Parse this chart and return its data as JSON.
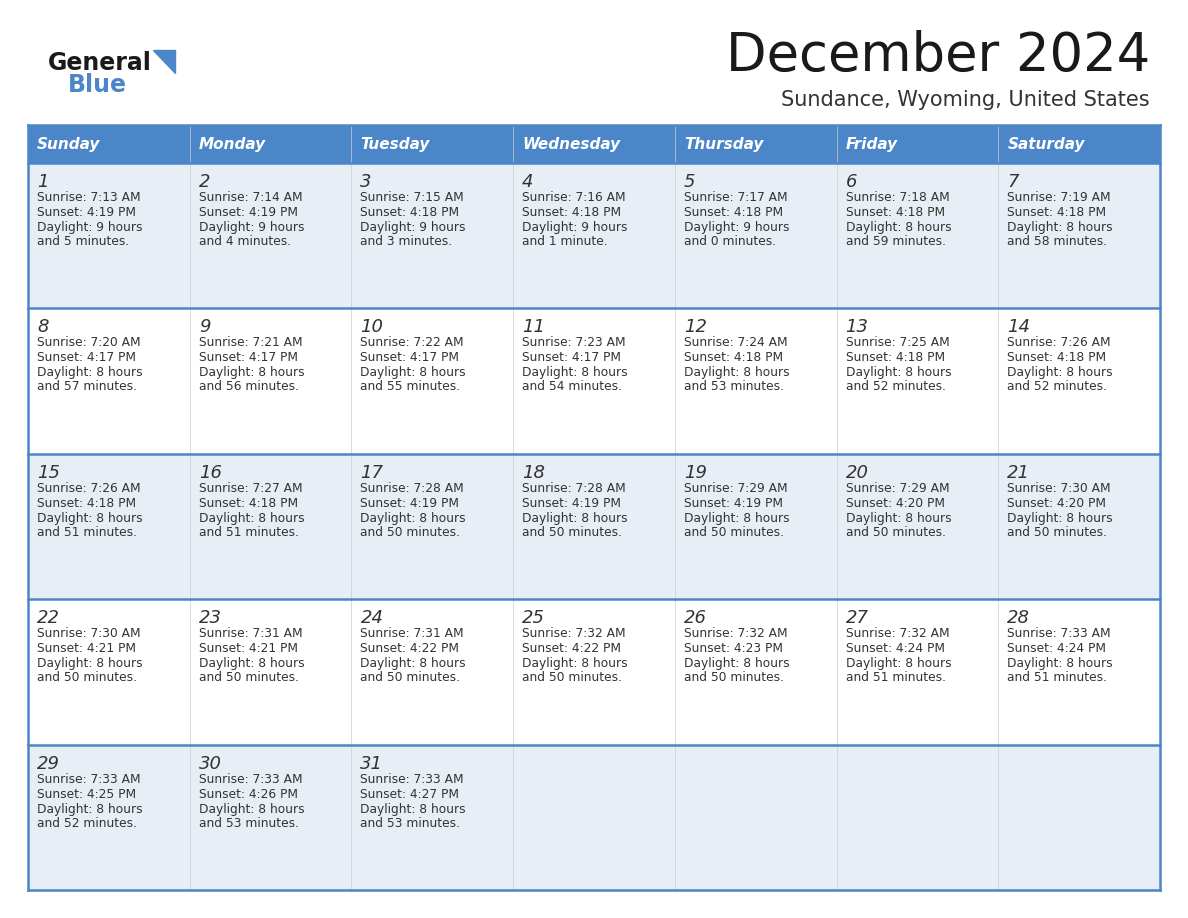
{
  "title": "December 2024",
  "subtitle": "Sundance, Wyoming, United States",
  "header_color": "#4a86c8",
  "header_text_color": "#FFFFFF",
  "cell_bg_even": "#e8eef5",
  "cell_bg_odd": "#FFFFFF",
  "day_headers": [
    "Sunday",
    "Monday",
    "Tuesday",
    "Wednesday",
    "Thursday",
    "Friday",
    "Saturday"
  ],
  "calendar_data": [
    [
      {
        "day": "1",
        "sunrise": "7:13 AM",
        "sunset": "4:19 PM",
        "daylight1": "Daylight: 9 hours",
        "daylight2": "and 5 minutes."
      },
      {
        "day": "2",
        "sunrise": "7:14 AM",
        "sunset": "4:19 PM",
        "daylight1": "Daylight: 9 hours",
        "daylight2": "and 4 minutes."
      },
      {
        "day": "3",
        "sunrise": "7:15 AM",
        "sunset": "4:18 PM",
        "daylight1": "Daylight: 9 hours",
        "daylight2": "and 3 minutes."
      },
      {
        "day": "4",
        "sunrise": "7:16 AM",
        "sunset": "4:18 PM",
        "daylight1": "Daylight: 9 hours",
        "daylight2": "and 1 minute."
      },
      {
        "day": "5",
        "sunrise": "7:17 AM",
        "sunset": "4:18 PM",
        "daylight1": "Daylight: 9 hours",
        "daylight2": "and 0 minutes."
      },
      {
        "day": "6",
        "sunrise": "7:18 AM",
        "sunset": "4:18 PM",
        "daylight1": "Daylight: 8 hours",
        "daylight2": "and 59 minutes."
      },
      {
        "day": "7",
        "sunrise": "7:19 AM",
        "sunset": "4:18 PM",
        "daylight1": "Daylight: 8 hours",
        "daylight2": "and 58 minutes."
      }
    ],
    [
      {
        "day": "8",
        "sunrise": "7:20 AM",
        "sunset": "4:17 PM",
        "daylight1": "Daylight: 8 hours",
        "daylight2": "and 57 minutes."
      },
      {
        "day": "9",
        "sunrise": "7:21 AM",
        "sunset": "4:17 PM",
        "daylight1": "Daylight: 8 hours",
        "daylight2": "and 56 minutes."
      },
      {
        "day": "10",
        "sunrise": "7:22 AM",
        "sunset": "4:17 PM",
        "daylight1": "Daylight: 8 hours",
        "daylight2": "and 55 minutes."
      },
      {
        "day": "11",
        "sunrise": "7:23 AM",
        "sunset": "4:17 PM",
        "daylight1": "Daylight: 8 hours",
        "daylight2": "and 54 minutes."
      },
      {
        "day": "12",
        "sunrise": "7:24 AM",
        "sunset": "4:18 PM",
        "daylight1": "Daylight: 8 hours",
        "daylight2": "and 53 minutes."
      },
      {
        "day": "13",
        "sunrise": "7:25 AM",
        "sunset": "4:18 PM",
        "daylight1": "Daylight: 8 hours",
        "daylight2": "and 52 minutes."
      },
      {
        "day": "14",
        "sunrise": "7:26 AM",
        "sunset": "4:18 PM",
        "daylight1": "Daylight: 8 hours",
        "daylight2": "and 52 minutes."
      }
    ],
    [
      {
        "day": "15",
        "sunrise": "7:26 AM",
        "sunset": "4:18 PM",
        "daylight1": "Daylight: 8 hours",
        "daylight2": "and 51 minutes."
      },
      {
        "day": "16",
        "sunrise": "7:27 AM",
        "sunset": "4:18 PM",
        "daylight1": "Daylight: 8 hours",
        "daylight2": "and 51 minutes."
      },
      {
        "day": "17",
        "sunrise": "7:28 AM",
        "sunset": "4:19 PM",
        "daylight1": "Daylight: 8 hours",
        "daylight2": "and 50 minutes."
      },
      {
        "day": "18",
        "sunrise": "7:28 AM",
        "sunset": "4:19 PM",
        "daylight1": "Daylight: 8 hours",
        "daylight2": "and 50 minutes."
      },
      {
        "day": "19",
        "sunrise": "7:29 AM",
        "sunset": "4:19 PM",
        "daylight1": "Daylight: 8 hours",
        "daylight2": "and 50 minutes."
      },
      {
        "day": "20",
        "sunrise": "7:29 AM",
        "sunset": "4:20 PM",
        "daylight1": "Daylight: 8 hours",
        "daylight2": "and 50 minutes."
      },
      {
        "day": "21",
        "sunrise": "7:30 AM",
        "sunset": "4:20 PM",
        "daylight1": "Daylight: 8 hours",
        "daylight2": "and 50 minutes."
      }
    ],
    [
      {
        "day": "22",
        "sunrise": "7:30 AM",
        "sunset": "4:21 PM",
        "daylight1": "Daylight: 8 hours",
        "daylight2": "and 50 minutes."
      },
      {
        "day": "23",
        "sunrise": "7:31 AM",
        "sunset": "4:21 PM",
        "daylight1": "Daylight: 8 hours",
        "daylight2": "and 50 minutes."
      },
      {
        "day": "24",
        "sunrise": "7:31 AM",
        "sunset": "4:22 PM",
        "daylight1": "Daylight: 8 hours",
        "daylight2": "and 50 minutes."
      },
      {
        "day": "25",
        "sunrise": "7:32 AM",
        "sunset": "4:22 PM",
        "daylight1": "Daylight: 8 hours",
        "daylight2": "and 50 minutes."
      },
      {
        "day": "26",
        "sunrise": "7:32 AM",
        "sunset": "4:23 PM",
        "daylight1": "Daylight: 8 hours",
        "daylight2": "and 50 minutes."
      },
      {
        "day": "27",
        "sunrise": "7:32 AM",
        "sunset": "4:24 PM",
        "daylight1": "Daylight: 8 hours",
        "daylight2": "and 51 minutes."
      },
      {
        "day": "28",
        "sunrise": "7:33 AM",
        "sunset": "4:24 PM",
        "daylight1": "Daylight: 8 hours",
        "daylight2": "and 51 minutes."
      }
    ],
    [
      {
        "day": "29",
        "sunrise": "7:33 AM",
        "sunset": "4:25 PM",
        "daylight1": "Daylight: 8 hours",
        "daylight2": "and 52 minutes."
      },
      {
        "day": "30",
        "sunrise": "7:33 AM",
        "sunset": "4:26 PM",
        "daylight1": "Daylight: 8 hours",
        "daylight2": "and 53 minutes."
      },
      {
        "day": "31",
        "sunrise": "7:33 AM",
        "sunset": "4:27 PM",
        "daylight1": "Daylight: 8 hours",
        "daylight2": "and 53 minutes."
      },
      null,
      null,
      null,
      null
    ]
  ],
  "border_color": "#4a86c8",
  "grid_color": "#4a86c8",
  "text_color": "#333333"
}
